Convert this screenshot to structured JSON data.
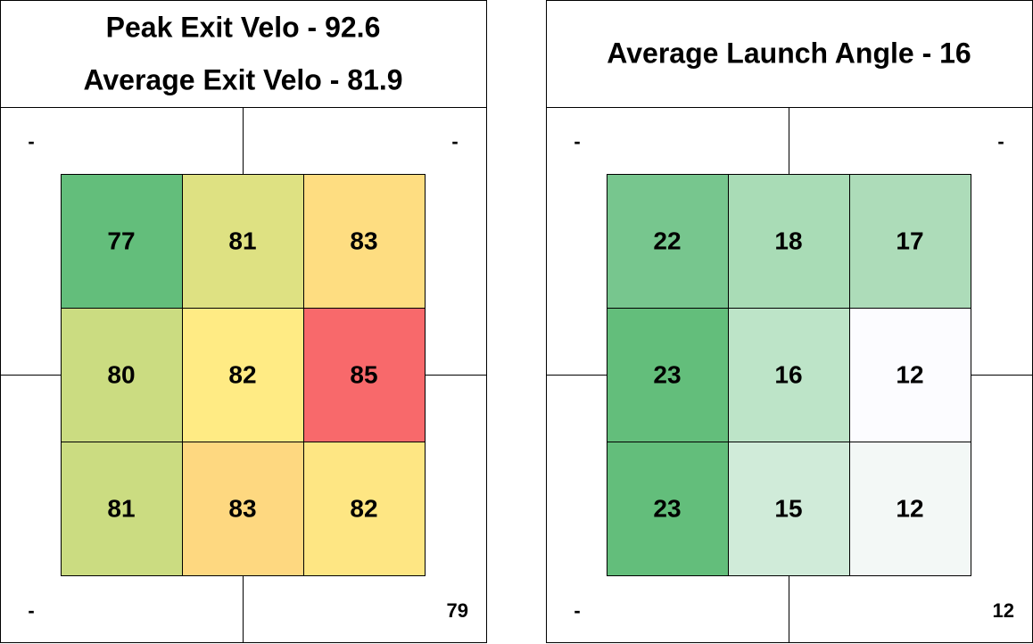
{
  "panels": [
    {
      "title_lines": [
        "Peak Exit Velo - 92.6",
        "Average Exit Velo - 81.9"
      ],
      "corners": {
        "top_left": "-",
        "top_right": "-",
        "bottom_left": "-",
        "bottom_right": 79
      },
      "grid": [
        [
          77,
          81,
          83
        ],
        [
          80,
          82,
          85
        ],
        [
          81,
          83,
          82
        ]
      ],
      "colors": [
        [
          "#63be7b",
          "#dee182",
          "#fedd81"
        ],
        [
          "#cbdc81",
          "#ffeb84",
          "#f8696b"
        ],
        [
          "#cbdc81",
          "#fed880",
          "#fee683"
        ]
      ]
    },
    {
      "title_lines": [
        "Average Launch Angle - 16"
      ],
      "corners": {
        "top_left": "-",
        "top_right": "-",
        "bottom_left": "-",
        "bottom_right": 12
      },
      "grid": [
        [
          22,
          18,
          17
        ],
        [
          23,
          16,
          12
        ],
        [
          23,
          15,
          12
        ]
      ],
      "colors": [
        [
          "#77c68e",
          "#a9dcb6",
          "#addcb9"
        ],
        [
          "#63be7b",
          "#bde4c8",
          "#fcfcff"
        ],
        [
          "#63be7b",
          "#d0ebd9",
          "#f3f8f6"
        ]
      ]
    }
  ]
}
